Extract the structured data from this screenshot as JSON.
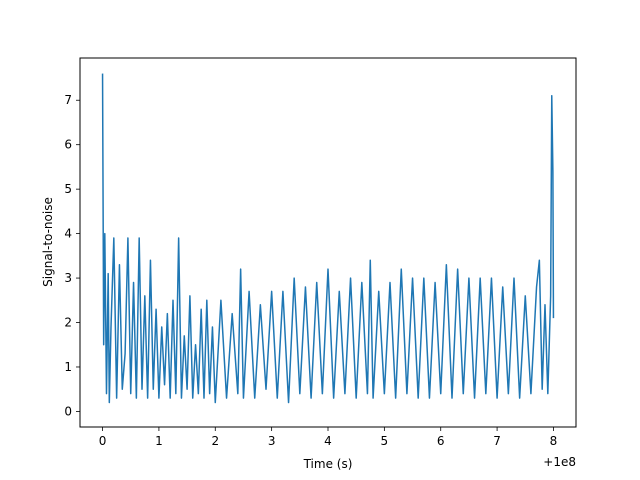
{
  "chart_data": {
    "type": "line",
    "title": "",
    "xlabel": "Time (s)",
    "ylabel": "Signal-to-noise",
    "x_offset_label": "+1e8",
    "xlim": [
      -0.4,
      8.4
    ],
    "ylim": [
      -0.35,
      7.95
    ],
    "x_ticks": [
      0,
      1,
      2,
      3,
      4,
      5,
      6,
      7,
      8
    ],
    "y_ticks": [
      0,
      1,
      2,
      3,
      4,
      5,
      6,
      7
    ],
    "grid": false,
    "legend": "none",
    "series": [
      {
        "color": "#1f77b4",
        "x": [
          0.0,
          0.02,
          0.04,
          0.07,
          0.1,
          0.12,
          0.15,
          0.2,
          0.25,
          0.3,
          0.35,
          0.4,
          0.45,
          0.5,
          0.55,
          0.6,
          0.65,
          0.7,
          0.75,
          0.8,
          0.85,
          0.9,
          0.95,
          1.0,
          1.05,
          1.1,
          1.15,
          1.2,
          1.25,
          1.3,
          1.35,
          1.4,
          1.45,
          1.5,
          1.55,
          1.6,
          1.65,
          1.7,
          1.75,
          1.8,
          1.85,
          1.9,
          1.95,
          2.0,
          2.1,
          2.2,
          2.3,
          2.4,
          2.45,
          2.5,
          2.6,
          2.7,
          2.8,
          2.9,
          3.0,
          3.1,
          3.2,
          3.3,
          3.4,
          3.5,
          3.6,
          3.7,
          3.8,
          3.9,
          4.0,
          4.1,
          4.2,
          4.3,
          4.4,
          4.5,
          4.6,
          4.7,
          4.75,
          4.8,
          4.9,
          5.0,
          5.1,
          5.2,
          5.3,
          5.4,
          5.5,
          5.6,
          5.7,
          5.8,
          5.9,
          6.0,
          6.1,
          6.2,
          6.3,
          6.4,
          6.5,
          6.6,
          6.7,
          6.8,
          6.9,
          7.0,
          7.1,
          7.2,
          7.3,
          7.4,
          7.5,
          7.6,
          7.7,
          7.75,
          7.8,
          7.85,
          7.9,
          7.95,
          7.97,
          7.99,
          8.0
        ],
        "y": [
          7.6,
          1.5,
          4.0,
          0.4,
          3.1,
          0.2,
          1.9,
          3.9,
          0.3,
          3.3,
          0.5,
          1.3,
          3.9,
          0.4,
          2.9,
          0.3,
          3.9,
          0.5,
          2.6,
          0.3,
          3.4,
          0.5,
          2.3,
          0.3,
          1.9,
          0.6,
          2.2,
          0.3,
          2.5,
          0.4,
          3.9,
          0.3,
          1.7,
          0.5,
          2.6,
          0.3,
          1.5,
          0.4,
          2.3,
          0.3,
          2.5,
          0.4,
          1.9,
          0.2,
          2.5,
          0.3,
          2.2,
          0.4,
          3.2,
          0.3,
          2.7,
          0.3,
          2.4,
          0.5,
          2.7,
          0.3,
          2.7,
          0.2,
          3.0,
          0.4,
          2.8,
          0.3,
          2.9,
          0.4,
          3.2,
          0.3,
          2.7,
          0.4,
          3.0,
          0.3,
          2.9,
          0.4,
          3.4,
          0.3,
          2.7,
          0.4,
          2.9,
          0.3,
          3.2,
          0.4,
          3.0,
          0.3,
          3.0,
          0.3,
          2.9,
          0.4,
          3.3,
          0.3,
          3.2,
          0.4,
          3.0,
          0.3,
          3.0,
          0.4,
          3.0,
          0.3,
          2.8,
          0.4,
          3.0,
          0.3,
          2.6,
          0.4,
          2.8,
          3.4,
          0.5,
          2.4,
          0.4,
          2.6,
          7.1,
          5.4,
          2.1
        ]
      }
    ]
  }
}
